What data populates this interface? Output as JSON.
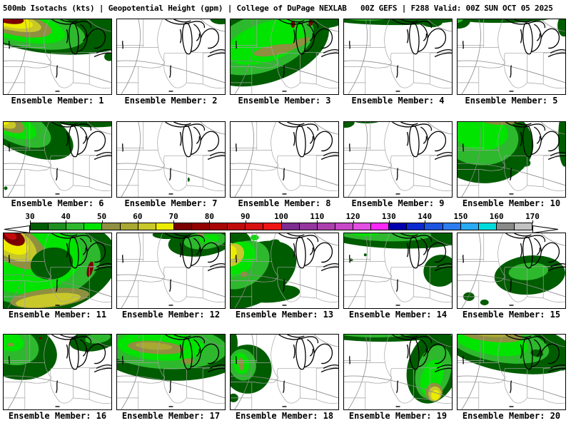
{
  "header": {
    "title": "500mb Isotachs (kts) | Geopotential Height (gpm) | College of DuPage NEXLAB   00Z GEFS | F288 Valid: 00Z SUN OCT 05 2025"
  },
  "colorbar": {
    "ticks": [
      30,
      40,
      50,
      60,
      70,
      80,
      90,
      100,
      110,
      120,
      130,
      140,
      150,
      160,
      170
    ],
    "segment_step": 5,
    "segment_colors": [
      "#005c00",
      "#1e8f1e",
      "#2eb82e",
      "#00e400",
      "#8f8f40",
      "#a8a832",
      "#c8c82a",
      "#ecec00",
      "#7a0000",
      "#930000",
      "#a80505",
      "#bf0a0a",
      "#d60f0f",
      "#ee1414",
      "#7d2d8f",
      "#94379e",
      "#ad3fad",
      "#c747c7",
      "#e34fe3",
      "#fa28fa",
      "#0000b0",
      "#0a2ad0",
      "#1e55e0",
      "#2e7df0",
      "#28aaf5",
      "#00dcdc",
      "#8a8a8a",
      "#c2c2c2"
    ]
  },
  "palette": {
    "g30": "#005c00",
    "g40": "#2eb82e",
    "g45": "#00e400",
    "k50": "#8f8f40",
    "k55": "#a8a832",
    "y60": "#c8c82a",
    "y65": "#ecec00",
    "r70": "#7a0000",
    "r85": "#c40b0b"
  },
  "panels": [
    {
      "label": "Ensemble Member: 1",
      "features": [
        [
          "g30",
          70,
          12,
          112,
          36,
          5
        ],
        [
          "g40",
          32,
          12,
          84,
          27,
          10
        ],
        [
          "g45",
          22,
          9,
          66,
          21,
          12
        ],
        [
          "k50",
          15,
          6,
          54,
          16,
          12
        ],
        [
          "y60",
          10,
          3,
          44,
          12,
          12
        ],
        [
          "y65",
          6,
          1,
          36,
          9.5,
          12
        ],
        [
          "r70",
          2,
          -3,
          27,
          8,
          12
        ],
        [
          "r85",
          -2,
          -5,
          16,
          5.5,
          12
        ],
        [
          "g30",
          149,
          52,
          7,
          6,
          0
        ]
      ]
    },
    {
      "label": "Ensemble Member: 2",
      "features": [
        [
          "g30",
          147,
          -1,
          16,
          8,
          0
        ]
      ]
    },
    {
      "label": "Ensemble Member: 3",
      "features": [
        [
          "g30",
          48,
          36,
          94,
          52,
          -18
        ],
        [
          "g30",
          112,
          2,
          48,
          12,
          0
        ],
        [
          "g40",
          44,
          33,
          76,
          40,
          -18
        ],
        [
          "g45",
          50,
          32,
          58,
          27,
          -18
        ],
        [
          "k50",
          62,
          43,
          30,
          7,
          -10
        ],
        [
          "k50",
          97,
          33,
          16,
          5,
          -25
        ],
        [
          "r70",
          88,
          7,
          3,
          5,
          0
        ],
        [
          "r70",
          113,
          5,
          3,
          4,
          0
        ]
      ]
    },
    {
      "label": "Ensemble Member: 4",
      "features": [
        [
          "g30",
          72,
          -5,
          105,
          13,
          0
        ],
        [
          "g30",
          124,
          4,
          15,
          7,
          0
        ],
        [
          "g40",
          32,
          -6,
          40,
          8,
          0
        ]
      ]
    },
    {
      "label": "Ensemble Member: 5",
      "features": [
        [
          "g30",
          57,
          -6,
          85,
          11,
          0
        ],
        [
          "g30",
          1,
          2,
          17,
          11,
          0
        ],
        [
          "g30",
          150,
          9,
          9,
          15,
          0
        ],
        [
          "g40",
          -1,
          -1,
          9,
          6,
          0
        ]
      ]
    },
    {
      "label": "Ensemble Member: 6",
      "features": [
        [
          "g30",
          28,
          8,
          76,
          34,
          25
        ],
        [
          "g30",
          116,
          -4,
          54,
          11,
          3
        ],
        [
          "g40",
          16,
          4,
          55,
          24,
          25
        ],
        [
          "g45",
          8,
          1,
          41,
          17,
          25
        ],
        [
          "k50",
          2,
          -1,
          30,
          12,
          25
        ],
        [
          "y60",
          -3,
          -3,
          22,
          9,
          25
        ],
        [
          "y65",
          -6,
          -5,
          15,
          7,
          25
        ],
        [
          "r70",
          -8,
          -6,
          9,
          5,
          25
        ],
        [
          "g30",
          57,
          41,
          2.5,
          2,
          0
        ],
        [
          "g30",
          64,
          38,
          2,
          1.5,
          0
        ],
        [
          "g30",
          3,
          92,
          2.5,
          2.5,
          0
        ]
      ]
    },
    {
      "label": "Ensemble Member: 7",
      "features": [
        [
          "g30",
          101,
          80,
          1.5,
          3,
          0
        ]
      ]
    },
    {
      "label": "Ensemble Member: 8",
      "features": []
    },
    {
      "label": "Ensemble Member: 9",
      "features": [
        [
          "g30",
          2,
          0,
          13,
          8,
          0
        ],
        [
          "g30",
          32,
          -4,
          22,
          6,
          0
        ]
      ]
    },
    {
      "label": "Ensemble Member: 10",
      "features": [
        [
          "g30",
          35,
          30,
          72,
          55,
          4
        ],
        [
          "g30",
          151,
          22,
          9,
          40,
          0
        ],
        [
          "g40",
          32,
          22,
          54,
          38,
          4
        ],
        [
          "g45",
          33,
          15,
          38,
          24,
          4
        ],
        [
          "k50",
          62,
          -5,
          30,
          9,
          0
        ],
        [
          "k55",
          62,
          -7,
          20,
          6,
          0
        ],
        [
          "g30",
          97,
          57,
          6,
          5,
          0
        ]
      ]
    },
    {
      "label": "Ensemble Member: 11",
      "features": [
        [
          "g30",
          58,
          48,
          104,
          64,
          -12
        ],
        [
          "g40",
          50,
          44,
          88,
          52,
          -12
        ],
        [
          "g45",
          42,
          40,
          70,
          42,
          -12
        ],
        [
          "k50",
          18,
          18,
          46,
          26,
          30
        ],
        [
          "y60",
          12,
          14,
          38,
          20,
          30
        ],
        [
          "y65",
          8,
          10,
          30,
          15,
          30
        ],
        [
          "r70",
          14,
          6,
          17,
          10,
          25
        ],
        [
          "r85",
          10,
          3,
          9,
          5,
          25
        ],
        [
          "g30",
          68,
          42,
          30,
          22,
          -10
        ],
        [
          "k50",
          65,
          90,
          56,
          13,
          -6
        ],
        [
          "y60",
          63,
          93,
          46,
          9,
          -6
        ],
        [
          "r70",
          122,
          50,
          4,
          11,
          15
        ]
      ]
    },
    {
      "label": "Ensemble Member: 12",
      "features": [
        [
          "g30",
          118,
          12,
          46,
          20,
          -6
        ],
        [
          "g40",
          124,
          10,
          30,
          12,
          -6
        ],
        [
          "g45",
          130,
          8,
          14,
          6,
          -6
        ],
        [
          "k50",
          118,
          1,
          5,
          3,
          0
        ],
        [
          "g30",
          70,
          2,
          20,
          6,
          0
        ]
      ]
    },
    {
      "label": "Ensemble Member: 13",
      "features": [
        [
          "g30",
          30,
          58,
          68,
          40,
          -28
        ],
        [
          "g30",
          8,
          4,
          24,
          12,
          30
        ],
        [
          "g30",
          60,
          84,
          38,
          12,
          -5
        ],
        [
          "g40",
          16,
          44,
          42,
          30,
          -32
        ],
        [
          "g45",
          8,
          36,
          30,
          22,
          -32
        ],
        [
          "y60",
          2,
          30,
          18,
          15,
          -32
        ],
        [
          "y65",
          -2,
          27,
          11,
          10,
          -32
        ],
        [
          "k50",
          19,
          57,
          5,
          4,
          0
        ],
        [
          "g30",
          60,
          15,
          10,
          6,
          -20
        ],
        [
          "g45",
          34,
          6,
          6,
          4,
          0
        ]
      ]
    },
    {
      "label": "Ensemble Member: 14",
      "features": [
        [
          "g30",
          70,
          3,
          100,
          18,
          2
        ],
        [
          "g40",
          55,
          0,
          68,
          11,
          2
        ],
        [
          "g45",
          30,
          -2,
          22,
          6,
          0
        ],
        [
          "g30",
          136,
          52,
          24,
          22,
          -15
        ],
        [
          "g30",
          10,
          37,
          2.5,
          2,
          0
        ],
        [
          "g30",
          30,
          30,
          2,
          2,
          0
        ]
      ]
    },
    {
      "label": "Ensemble Member: 15",
      "features": [
        [
          "g30",
          102,
          58,
          50,
          27,
          -5
        ],
        [
          "g40",
          100,
          53,
          28,
          12,
          -5
        ],
        [
          "g30",
          16,
          88,
          8,
          6,
          0
        ],
        [
          "g30",
          38,
          96,
          6,
          4,
          0
        ],
        [
          "g30",
          62,
          50,
          2,
          2,
          0
        ]
      ]
    },
    {
      "label": "Ensemble Member: 16",
      "features": [
        [
          "g30",
          18,
          22,
          58,
          40,
          12
        ],
        [
          "g40",
          12,
          16,
          38,
          26,
          12
        ],
        [
          "g45",
          8,
          10,
          21,
          13,
          12
        ],
        [
          "k50",
          10,
          14,
          5,
          2.5,
          0
        ],
        [
          "r70",
          52,
          5,
          2,
          1.5,
          0
        ],
        [
          "g30",
          127,
          8,
          34,
          15,
          -8
        ],
        [
          "g40",
          133,
          5,
          18,
          7,
          -8
        ]
      ]
    },
    {
      "label": "Ensemble Member: 17",
      "features": [
        [
          "g30",
          75,
          22,
          105,
          42,
          2
        ],
        [
          "g40",
          70,
          18,
          86,
          30,
          2
        ],
        [
          "g45",
          62,
          16,
          62,
          20,
          3
        ],
        [
          "k50",
          55,
          18,
          40,
          9,
          4
        ],
        [
          "k55",
          52,
          16,
          26,
          5,
          4
        ],
        [
          "k50",
          100,
          37,
          9,
          4,
          0
        ]
      ]
    },
    {
      "label": "Ensemble Member: 18",
      "features": [
        [
          "g30",
          24,
          48,
          34,
          34,
          -15
        ],
        [
          "g30",
          0,
          12,
          10,
          20,
          0
        ],
        [
          "g40",
          17,
          42,
          19,
          22,
          -12
        ],
        [
          "g45",
          15,
          40,
          11,
          15,
          -10
        ],
        [
          "k50",
          15,
          41,
          4,
          9,
          -8
        ],
        [
          "g30",
          4,
          88,
          7,
          6,
          0
        ]
      ]
    },
    {
      "label": "Ensemble Member: 19",
      "features": [
        [
          "g30",
          55,
          -2,
          88,
          12,
          0
        ],
        [
          "g40",
          45,
          -4,
          58,
          8,
          0
        ],
        [
          "g30",
          126,
          45,
          36,
          52,
          18
        ],
        [
          "g40",
          126,
          52,
          24,
          38,
          18
        ],
        [
          "g45",
          124,
          60,
          15,
          26,
          18
        ],
        [
          "k50",
          127,
          80,
          12,
          13,
          10
        ],
        [
          "y60",
          128,
          82,
          9,
          10,
          10
        ],
        [
          "y65",
          129,
          84,
          6,
          7,
          10
        ]
      ]
    },
    {
      "label": "Ensemble Member: 20",
      "features": [
        [
          "g30",
          72,
          16,
          96,
          36,
          10
        ],
        [
          "g40",
          58,
          12,
          72,
          26,
          10
        ],
        [
          "g45",
          48,
          10,
          52,
          18,
          10
        ],
        [
          "k50",
          48,
          0,
          44,
          10,
          6
        ],
        [
          "k55",
          44,
          -3,
          30,
          6,
          6
        ],
        [
          "g30",
          112,
          26,
          9,
          5,
          10
        ],
        [
          "g30",
          148,
          40,
          8,
          10,
          0
        ]
      ]
    }
  ],
  "chart_data": {
    "type": "map",
    "title": "500mb Isotachs (kts) | Geopotential Height (gpm)",
    "source": "College of DuPage NEXLAB",
    "model_run": "00Z GEFS",
    "forecast_hour": "F288",
    "valid_time": "00Z SUN OCT 05 2025",
    "grid": "4 rows x 5 columns",
    "members": [
      1,
      2,
      3,
      4,
      5,
      6,
      7,
      8,
      9,
      10,
      11,
      12,
      13,
      14,
      15,
      16,
      17,
      18,
      19,
      20
    ],
    "colorbar": {
      "min": 30,
      "max": 170,
      "tick_step": 10,
      "segment_step": 5,
      "unit": "kts"
    }
  }
}
